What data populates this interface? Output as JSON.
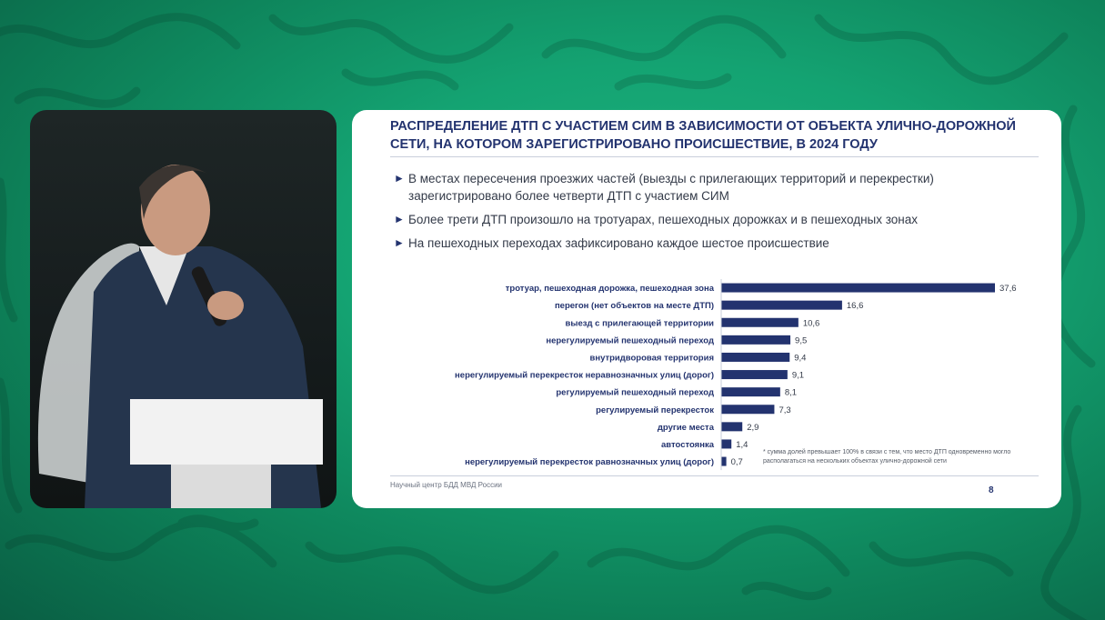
{
  "slide": {
    "title": "РАСПРЕДЕЛЕНИЕ ДТП С УЧАСТИЕМ СИМ В ЗАВИСИМОСТИ ОТ ОБЪЕКТА УЛИЧНО-ДОРОЖНОЙ СЕТИ, НА КОТОРОМ ЗАРЕГИСТРИРОВАНО ПРОИСШЕСТВИЕ, В 2024 ГОДУ",
    "bullets": [
      "В местах пересечения проезжих частей (выезды с прилегающих территорий и перекрестки) зарегистрировано более четверти ДТП с участием СИМ",
      "Более трети ДТП произошло на тротуарах, пешеходных дорожках и в пешеходных зонах",
      "На пешеходных переходах зафиксировано каждое шестое происшествие"
    ],
    "footnote": "* сумма долей превышает 100% в связи с тем, что место ДТП одновременно могло располагаться на нескольких объектах улично-дорожной сети",
    "footer_source": "Научный центр БДД МВД России",
    "page_number": "8"
  },
  "colors": {
    "bar": "#23336f",
    "title": "#23336f",
    "background": "#14a372"
  },
  "chart_data": {
    "type": "bar",
    "orientation": "horizontal",
    "categories": [
      "тротуар, пешеходная дорожка, пешеходная зона",
      "перегон (нет объектов на месте ДТП)",
      "выезд с прилегающей территории",
      "нерегулируемый пешеходный переход",
      "внутридворовая территория",
      "нерегулируемый перекресток неравнозначных улиц (дорог)",
      "регулируемый пешеходный переход",
      "регулируемый перекресток",
      "другие места",
      "автостоянка",
      "нерегулируемый перекресток равнозначных улиц (дорог)"
    ],
    "values": [
      37.6,
      16.6,
      10.6,
      9.5,
      9.4,
      9.1,
      8.1,
      7.3,
      2.9,
      1.4,
      0.7
    ],
    "value_labels": [
      "37,6",
      "16,6",
      "10,6",
      "9,5",
      "9,4",
      "9,1",
      "8,1",
      "7,3",
      "2,9",
      "1,4",
      "0,7"
    ],
    "xlim": [
      0,
      37.6
    ],
    "grid": false,
    "legend": "none"
  }
}
